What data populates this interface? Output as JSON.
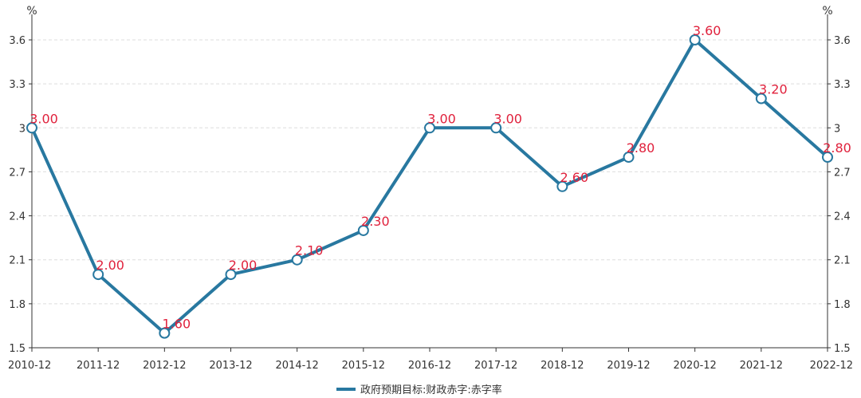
{
  "chart_data": {
    "type": "line",
    "title": "",
    "categories": [
      "2010-12",
      "2011-12",
      "2012-12",
      "2013-12",
      "2014-12",
      "2015-12",
      "2016-12",
      "2017-12",
      "2018-12",
      "2019-12",
      "2020-12",
      "2021-12",
      "2022-12"
    ],
    "series": [
      {
        "name": "政府预期目标:财政赤字:赤字率",
        "values": [
          3.0,
          2.0,
          1.6,
          2.0,
          2.1,
          2.3,
          3.0,
          3.0,
          2.6,
          2.8,
          3.6,
          3.2,
          2.8
        ],
        "data_labels": [
          "3.00",
          "2.00",
          "1.60",
          "2.00",
          "2.10",
          "2.30",
          "3.00",
          "3.00",
          "2.60",
          "2.80",
          "3.60",
          "3.20",
          "2.80"
        ]
      }
    ],
    "y_left": {
      "unit": "%",
      "ticks": [
        1.5,
        1.8,
        2.1,
        2.4,
        2.7,
        3,
        3.3,
        3.6
      ],
      "tick_labels": [
        "1.5",
        "1.8",
        "2.1",
        "2.4",
        "2.7",
        "3",
        "3.3",
        "3.6"
      ],
      "ylim": [
        1.5,
        3.6
      ]
    },
    "y_right": {
      "unit": "%",
      "ticks": [
        1.5,
        1.8,
        2.1,
        2.4,
        2.7,
        3,
        3.3,
        3.6
      ],
      "tick_labels": [
        "1.5",
        "1.8",
        "2.1",
        "2.4",
        "2.7",
        "3",
        "3.3",
        "3.6"
      ],
      "ylim": [
        1.5,
        3.6
      ]
    },
    "grid": "horizontal-dashed",
    "legend_position": "bottom-center",
    "colors": {
      "line": "#2878a0",
      "marker_fill": "#ffffff",
      "data_label": "#e0213c",
      "grid": "#dddddd",
      "axis": "#333333"
    }
  }
}
